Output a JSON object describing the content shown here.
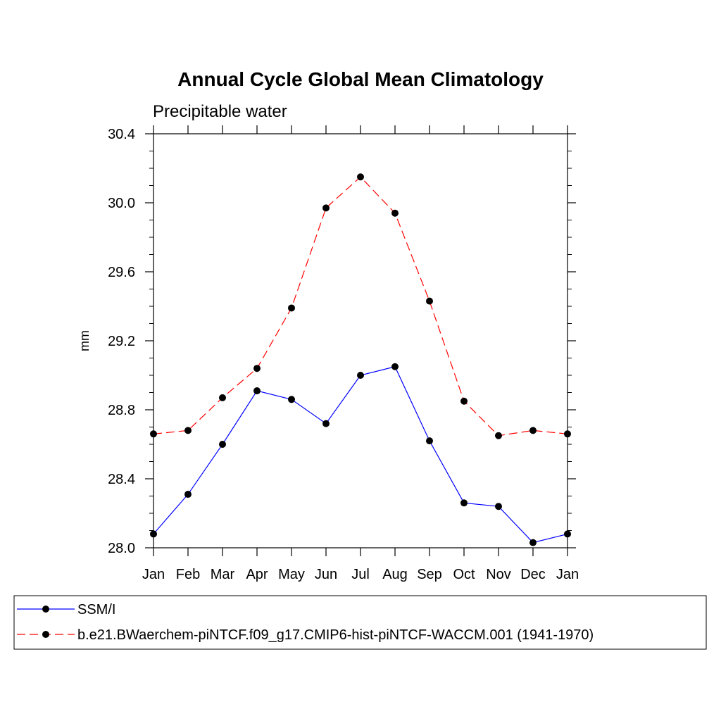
{
  "chart_data": {
    "type": "line",
    "title": "Annual Cycle Global Mean Climatology",
    "subtitle": "Precipitable water",
    "xlabel": "",
    "ylabel": "mm",
    "categories": [
      "Jan",
      "Feb",
      "Mar",
      "Apr",
      "May",
      "Jun",
      "Jul",
      "Aug",
      "Sep",
      "Oct",
      "Nov",
      "Dec",
      "Jan"
    ],
    "ylim": [
      28.0,
      30.4
    ],
    "yticks": [
      "28.0",
      "28.4",
      "28.8",
      "29.2",
      "29.6",
      "30.0",
      "30.4"
    ],
    "grid": false,
    "legend_position": "bottom",
    "series": [
      {
        "name": "SSM/I",
        "color": "#0000ff",
        "line_style": "solid",
        "marker": "filled-circle",
        "values": [
          28.08,
          28.31,
          28.6,
          28.91,
          28.86,
          28.72,
          29.0,
          29.05,
          28.62,
          28.26,
          28.24,
          28.03,
          28.08
        ]
      },
      {
        "name": "b.e21.BWaerchem-piNTCF.f09_g17.CMIP6-hist-piNTCF-WACCM.001 (1941-1970)",
        "color": "#ff0000",
        "line_style": "dashed",
        "marker": "filled-circle",
        "values": [
          28.66,
          28.68,
          28.87,
          29.04,
          29.39,
          29.97,
          30.15,
          29.94,
          29.43,
          28.85,
          28.65,
          28.68,
          28.66
        ]
      }
    ]
  }
}
